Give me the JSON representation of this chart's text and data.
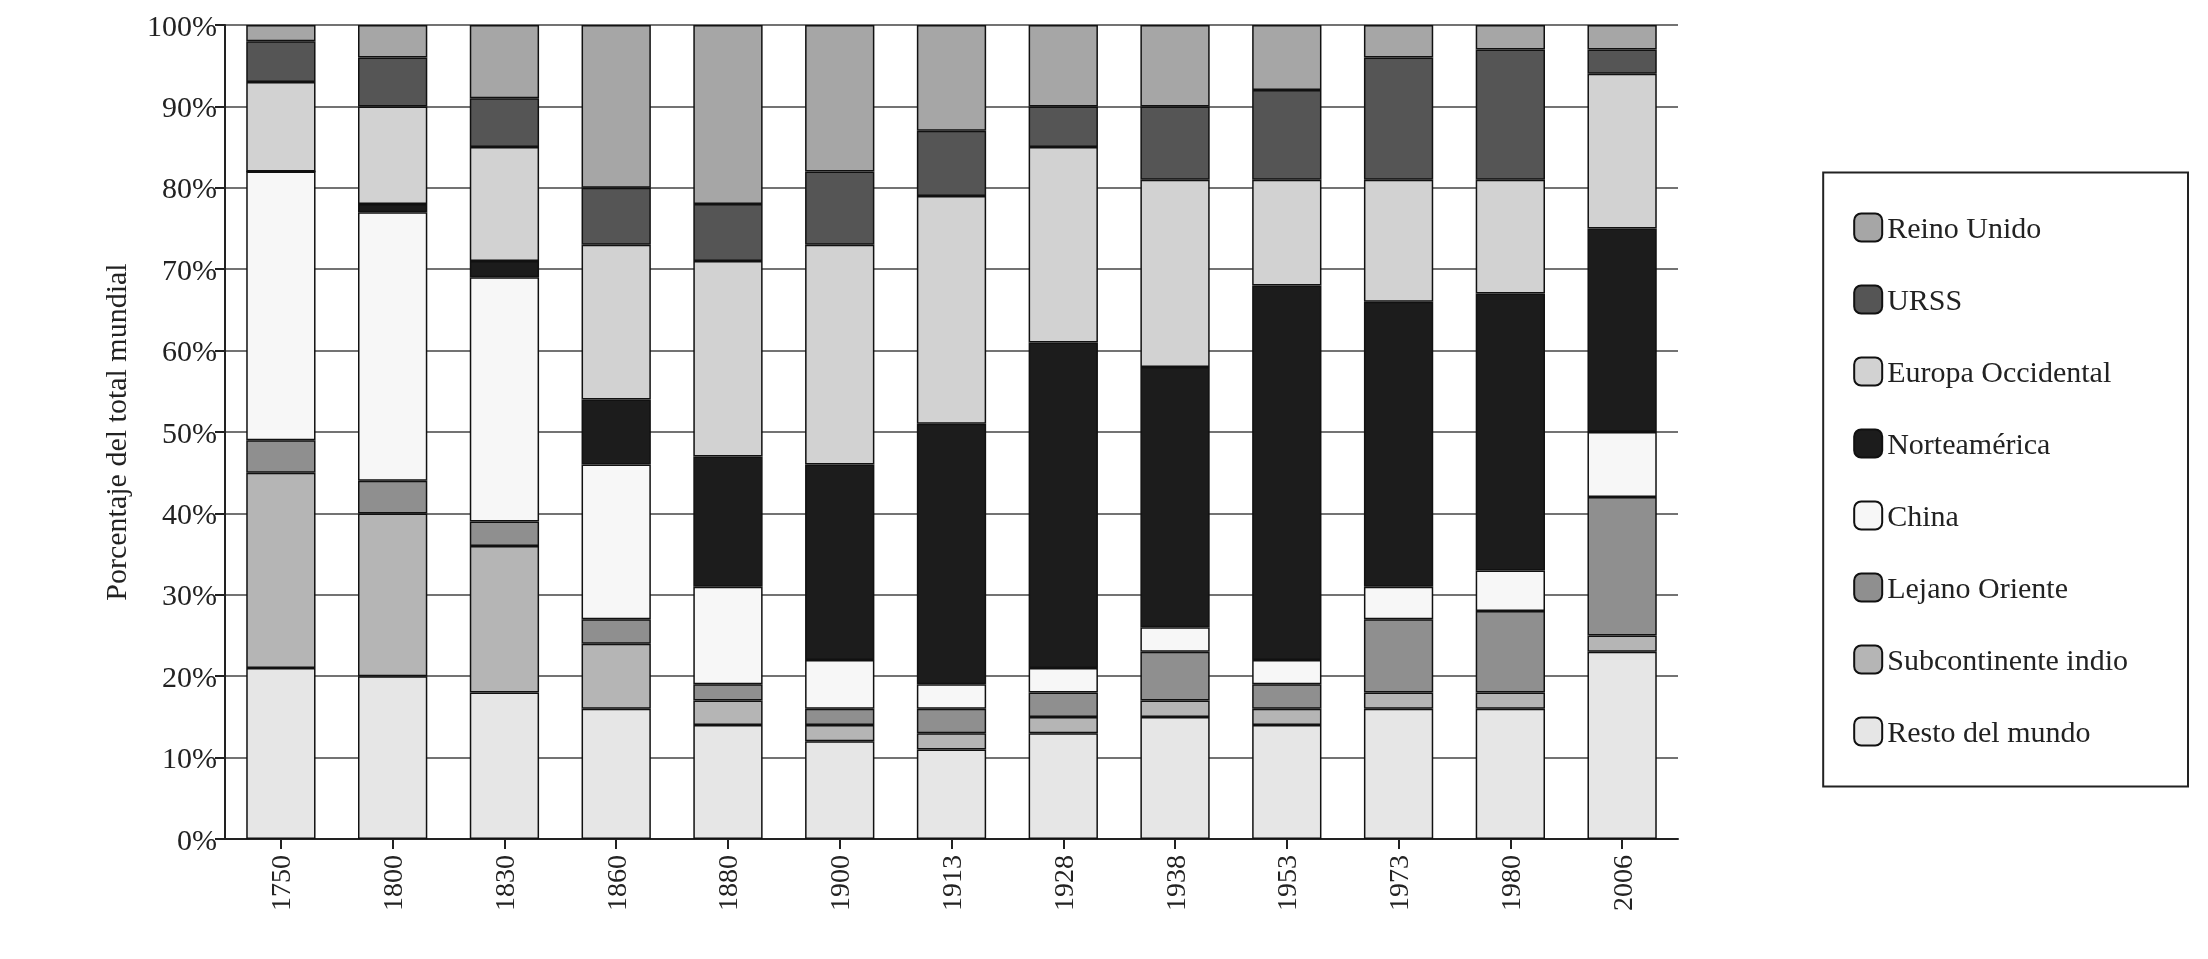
{
  "chart_data": {
    "type": "bar",
    "stacked": true,
    "ylabel": "Porcentaje del total mundial",
    "categories": [
      "1750",
      "1800",
      "1830",
      "1860",
      "1880",
      "1900",
      "1913",
      "1928",
      "1938",
      "1953",
      "1973",
      "1980",
      "2006"
    ],
    "series": [
      {
        "name": "Resto del mundo",
        "color": "#e6e6e6",
        "values": [
          21,
          20,
          18,
          16,
          14,
          12,
          11,
          13,
          15,
          14,
          16,
          16,
          23
        ]
      },
      {
        "name": "Subcontinente indio",
        "color": "#b5b5b5",
        "values": [
          24,
          20,
          18,
          8,
          3,
          2,
          2,
          2,
          2,
          2,
          2,
          2,
          2
        ]
      },
      {
        "name": "Lejano Oriente",
        "color": "#8f8f8f",
        "values": [
          4,
          4,
          3,
          3,
          2,
          2,
          3,
          3,
          6,
          3,
          9,
          10,
          17
        ]
      },
      {
        "name": "China",
        "color": "#f7f7f7",
        "values": [
          33,
          33,
          30,
          19,
          12,
          6,
          3,
          3,
          3,
          3,
          4,
          5,
          8
        ]
      },
      {
        "name": "Norteamérica",
        "color": "#1c1c1c",
        "values": [
          0,
          1,
          2,
          8,
          16,
          24,
          32,
          40,
          32,
          46,
          35,
          34,
          25
        ]
      },
      {
        "name": "Europa Occidental",
        "color": "#d2d2d2",
        "values": [
          11,
          12,
          14,
          19,
          24,
          27,
          28,
          24,
          23,
          13,
          15,
          14,
          19
        ]
      },
      {
        "name": "URSS",
        "color": "#555555",
        "values": [
          5,
          6,
          6,
          7,
          7,
          9,
          8,
          5,
          9,
          11,
          15,
          16,
          3
        ]
      },
      {
        "name": "Reino Unido",
        "color": "#a6a6a6",
        "values": [
          2,
          4,
          9,
          20,
          22,
          18,
          13,
          10,
          10,
          8,
          4,
          3,
          3
        ]
      }
    ],
    "ylim": [
      0,
      100
    ],
    "yticks": [
      {
        "value": 0,
        "label": "0%"
      },
      {
        "value": 10,
        "label": "10%"
      },
      {
        "value": 20,
        "label": "20%"
      },
      {
        "value": 30,
        "label": "30%"
      },
      {
        "value": 40,
        "label": "40%"
      },
      {
        "value": 50,
        "label": "50%"
      },
      {
        "value": 60,
        "label": "60%"
      },
      {
        "value": 70,
        "label": "70%"
      },
      {
        "value": 80,
        "label": "80%"
      },
      {
        "value": 90,
        "label": "90%"
      },
      {
        "value": 100,
        "label": "100%"
      }
    ],
    "grid": "y",
    "legend": "right"
  }
}
